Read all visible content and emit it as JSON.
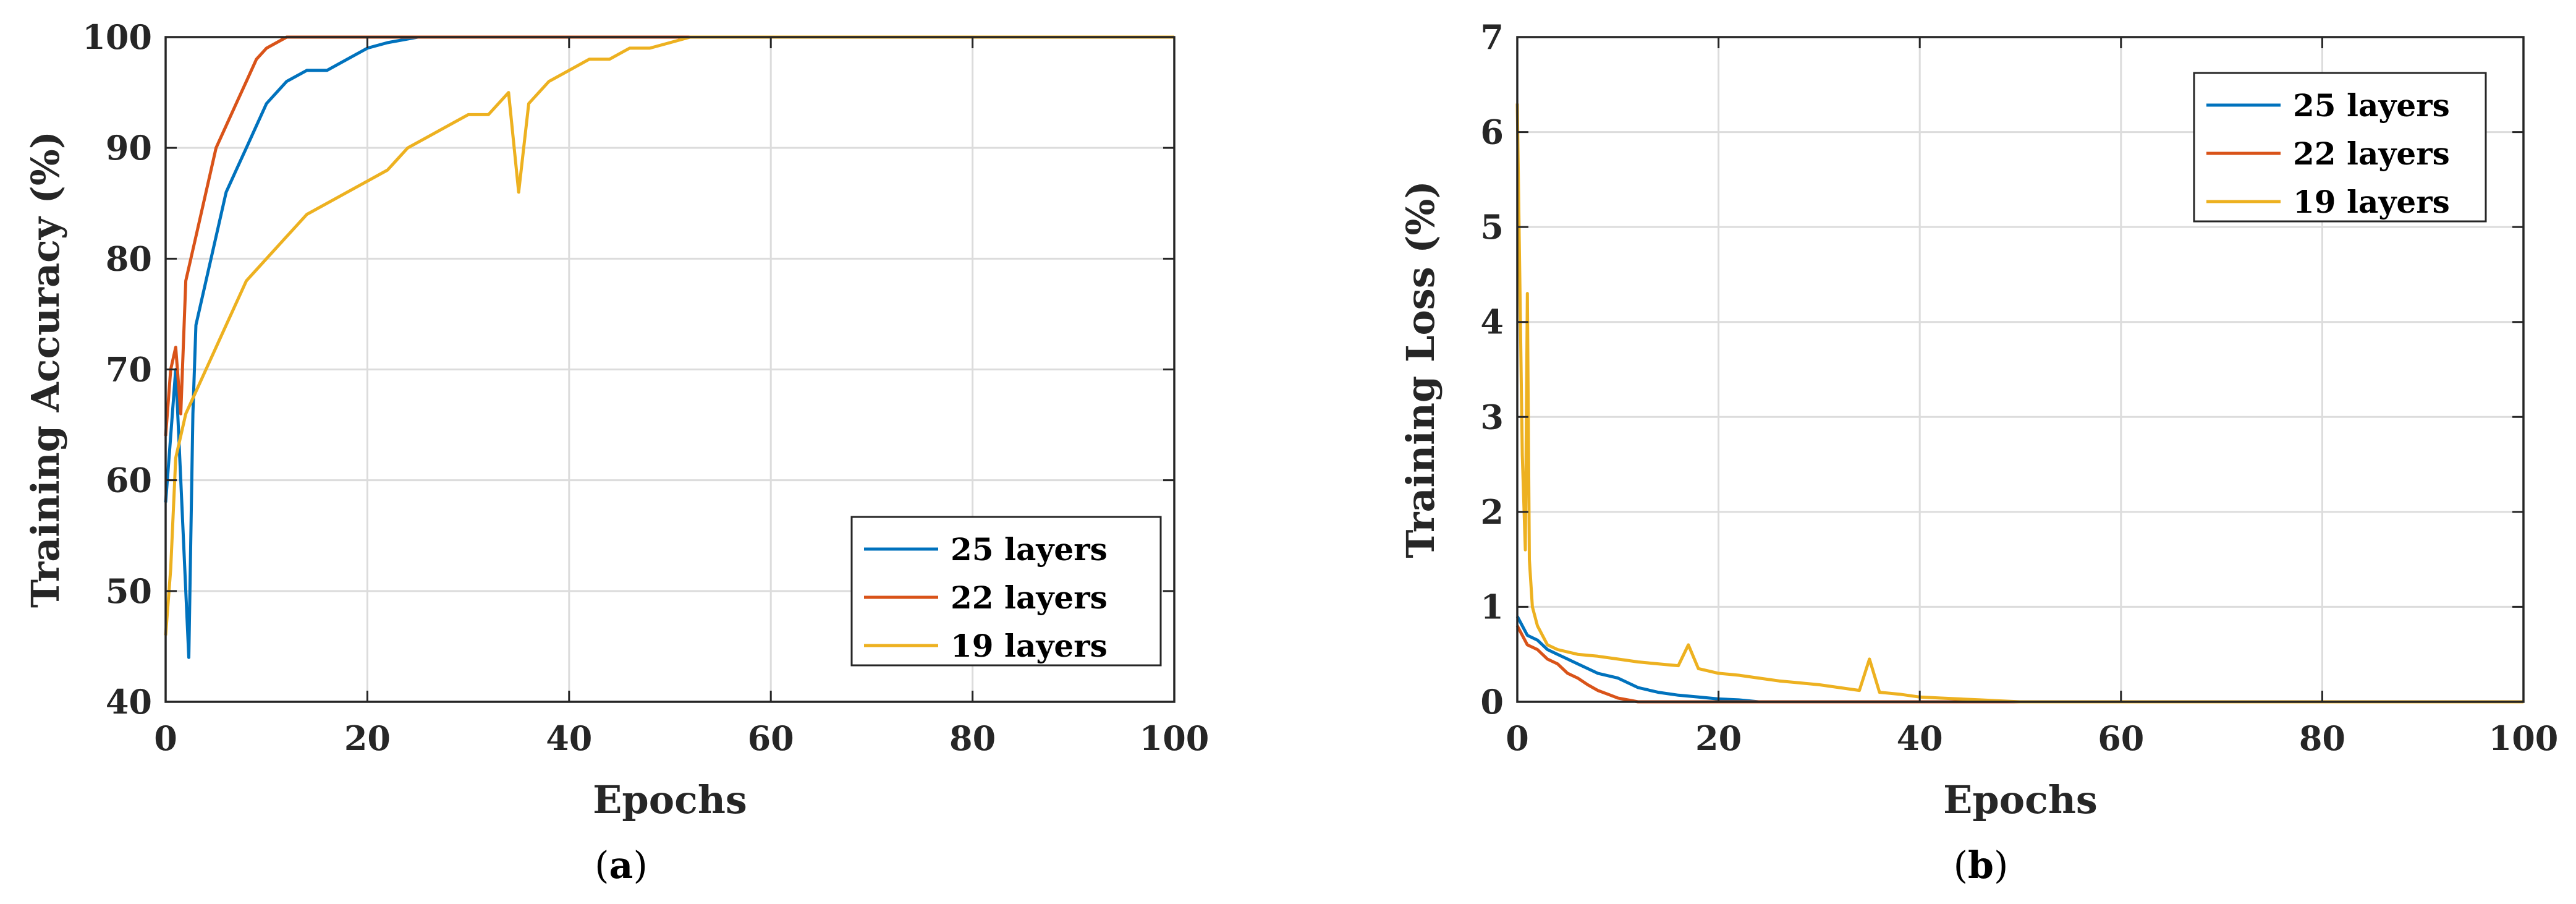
{
  "colors": {
    "series_25": "#0072BD",
    "series_22": "#D95319",
    "series_19": "#EDB120",
    "axis": "#262626",
    "grid": "#dcdcdc"
  },
  "chart_data": [
    {
      "type": "line",
      "panel": "a",
      "panel_label": "(a)",
      "panel_letter": "a",
      "xlabel": "Epochs",
      "ylabel": "Training Accuracy (%)",
      "xlim": [
        0,
        100
      ],
      "ylim": [
        40,
        100
      ],
      "xticks": [
        0,
        20,
        40,
        60,
        80,
        100
      ],
      "yticks": [
        40,
        50,
        60,
        70,
        80,
        90,
        100
      ],
      "grid": true,
      "legend_position": "bottom-right",
      "series": [
        {
          "name": "25 layers",
          "color": "#0072BD",
          "x": [
            0,
            0.5,
            1,
            1.5,
            2,
            2.3,
            2.7,
            3,
            4,
            5,
            6,
            7,
            8,
            9,
            10,
            12,
            14,
            16,
            18,
            20,
            22,
            25,
            100
          ],
          "y": [
            58,
            64,
            70,
            60,
            50,
            44,
            66,
            74,
            78,
            82,
            86,
            88,
            90,
            92,
            94,
            96,
            97,
            97,
            98,
            99,
            99.5,
            100,
            100
          ]
        },
        {
          "name": "22 layers",
          "color": "#D95319",
          "x": [
            0,
            0.5,
            1,
            1.5,
            2,
            3,
            4,
            5,
            6,
            7,
            8,
            9,
            10,
            12,
            100
          ],
          "y": [
            64,
            70,
            72,
            66,
            78,
            82,
            86,
            90,
            92,
            94,
            96,
            98,
            99,
            100,
            100
          ]
        },
        {
          "name": "19 layers",
          "color": "#EDB120",
          "x": [
            0,
            0.5,
            1,
            2,
            3,
            4,
            5,
            6,
            8,
            10,
            12,
            14,
            16,
            18,
            20,
            22,
            24,
            26,
            28,
            30,
            32,
            34,
            35,
            36,
            38,
            40,
            42,
            44,
            46,
            48,
            50,
            52,
            55,
            100
          ],
          "y": [
            46,
            52,
            62,
            66,
            68,
            70,
            72,
            74,
            78,
            80,
            82,
            84,
            85,
            86,
            87,
            88,
            90,
            91,
            92,
            93,
            93,
            95,
            86,
            94,
            96,
            97,
            98,
            98,
            99,
            99,
            99.5,
            100,
            100,
            100
          ]
        }
      ]
    },
    {
      "type": "line",
      "panel": "b",
      "panel_label": "(b)",
      "panel_letter": "b",
      "xlabel": "Epochs",
      "ylabel": "Training Loss (%)",
      "xlim": [
        0,
        100
      ],
      "ylim": [
        0,
        7
      ],
      "xticks": [
        0,
        20,
        40,
        60,
        80,
        100
      ],
      "yticks": [
        0,
        1,
        2,
        3,
        4,
        5,
        6,
        7
      ],
      "grid": true,
      "legend_position": "top-right",
      "series": [
        {
          "name": "25 layers",
          "color": "#0072BD",
          "x": [
            0,
            0.5,
            1,
            2,
            3,
            4,
            5,
            6,
            8,
            10,
            12,
            14,
            16,
            18,
            20,
            22,
            24,
            100
          ],
          "y": [
            0.9,
            0.8,
            0.7,
            0.65,
            0.55,
            0.5,
            0.45,
            0.4,
            0.3,
            0.25,
            0.15,
            0.1,
            0.07,
            0.05,
            0.03,
            0.02,
            0,
            0
          ]
        },
        {
          "name": "22 layers",
          "color": "#D95319",
          "x": [
            0,
            0.5,
            1,
            2,
            3,
            4,
            5,
            6,
            7,
            8,
            9,
            10,
            11,
            12,
            100
          ],
          "y": [
            0.8,
            0.7,
            0.6,
            0.55,
            0.45,
            0.4,
            0.3,
            0.25,
            0.18,
            0.12,
            0.08,
            0.04,
            0.02,
            0,
            0
          ]
        },
        {
          "name": "19 layers",
          "color": "#EDB120",
          "x": [
            0,
            0.2,
            0.5,
            0.8,
            1,
            1.2,
            1.5,
            2,
            3,
            4,
            6,
            8,
            10,
            12,
            14,
            16,
            17,
            18,
            20,
            22,
            24,
            26,
            28,
            30,
            32,
            34,
            35,
            36,
            38,
            40,
            42,
            44,
            46,
            48,
            50,
            100
          ],
          "y": [
            6.3,
            4.8,
            2.6,
            1.6,
            4.3,
            1.5,
            1.0,
            0.8,
            0.6,
            0.55,
            0.5,
            0.48,
            0.45,
            0.42,
            0.4,
            0.38,
            0.6,
            0.35,
            0.3,
            0.28,
            0.25,
            0.22,
            0.2,
            0.18,
            0.15,
            0.12,
            0.45,
            0.1,
            0.08,
            0.05,
            0.04,
            0.03,
            0.02,
            0.01,
            0,
            0
          ]
        }
      ]
    }
  ]
}
